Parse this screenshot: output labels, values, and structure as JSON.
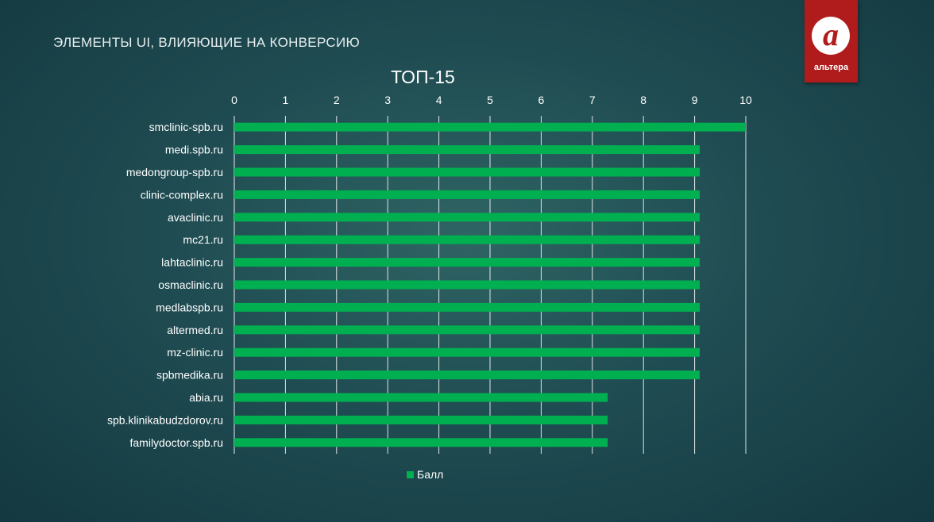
{
  "slide_title": "ЭЛЕМЕНТЫ UI, ВЛИЯЮЩИЕ НА КОНВЕРСИЮ",
  "logo": {
    "mark": "а",
    "text": "альтера",
    "color": "#b01c1c"
  },
  "chart_data": {
    "type": "bar",
    "orientation": "horizontal",
    "title": "ТОП-15",
    "xlim": [
      0,
      10
    ],
    "x_ticks": [
      "0",
      "1",
      "2",
      "3",
      "4",
      "5",
      "6",
      "7",
      "8",
      "9",
      "10"
    ],
    "x_axis_position": "top",
    "grid": true,
    "legend_position": "bottom",
    "categories": [
      "smclinic-spb.ru",
      "medi.spb.ru",
      "medongroup-spb.ru",
      "clinic-complex.ru",
      "avaclinic.ru",
      "mc21.ru",
      "lahtaclinic.ru",
      "osmaclinic.ru",
      "medlabspb.ru",
      "altermed.ru",
      "mz-clinic.ru",
      "spbmedika.ru",
      "abia.ru",
      "spb.klinikabudzdorov.ru",
      "familydoctor.spb.ru"
    ],
    "series": [
      {
        "name": "Балл",
        "color": "#00b050",
        "values": [
          10,
          9.1,
          9.1,
          9.1,
          9.1,
          9.1,
          9.1,
          9.1,
          9.1,
          9.1,
          9.1,
          9.1,
          7.3,
          7.3,
          7.3
        ]
      }
    ]
  }
}
